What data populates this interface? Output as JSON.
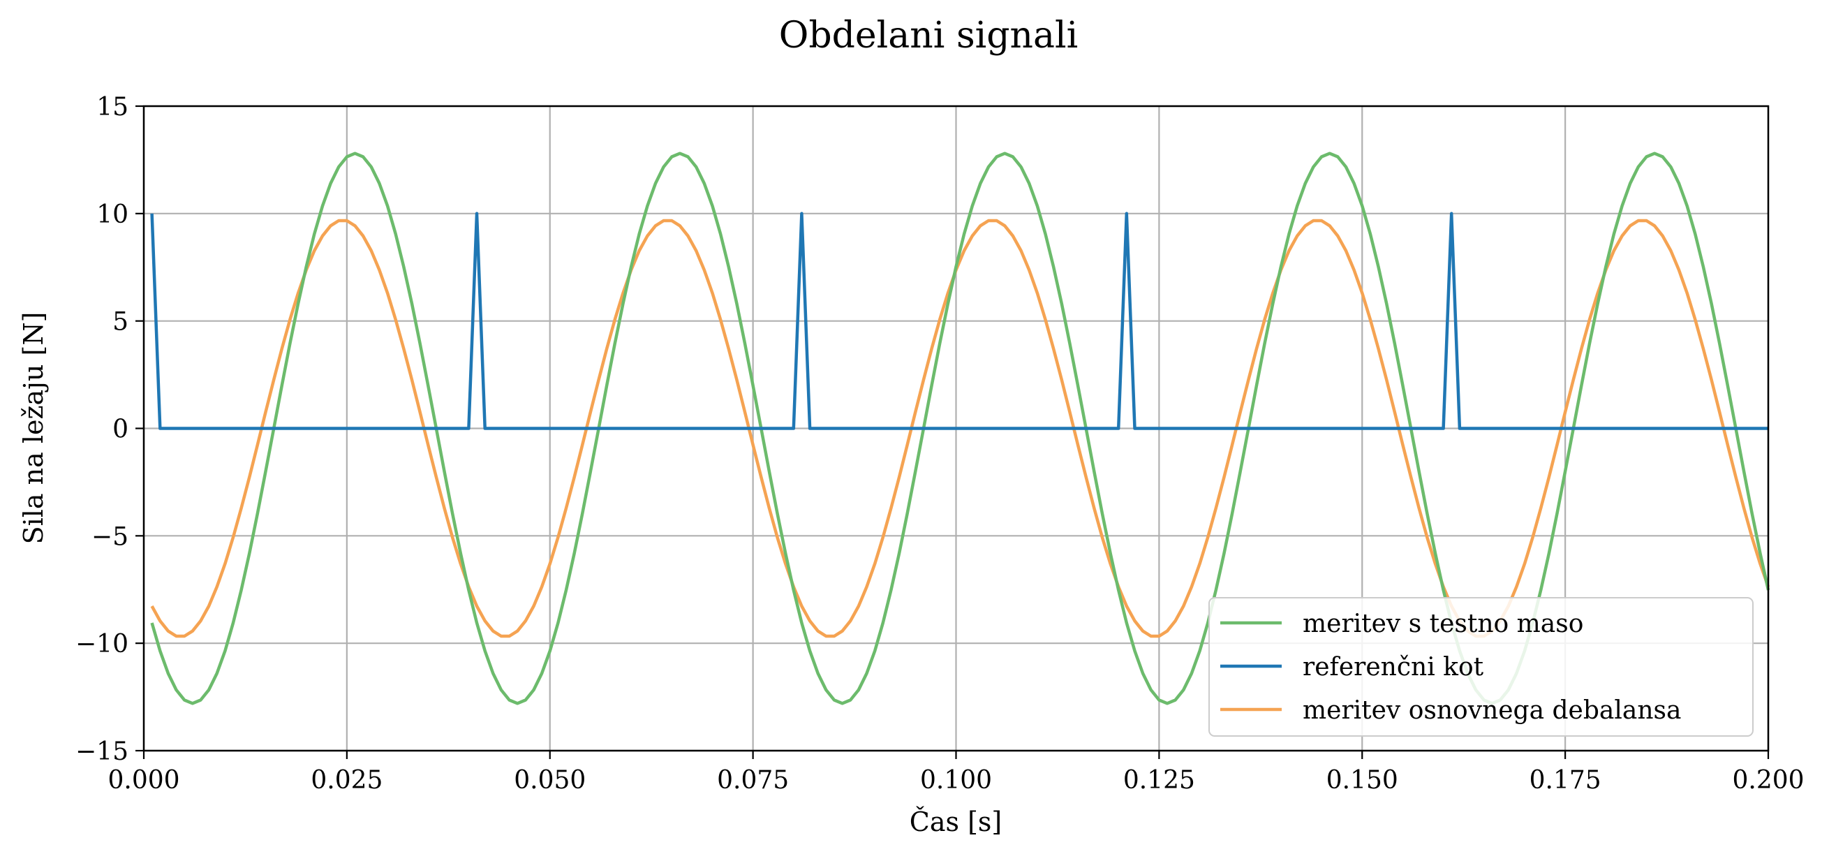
{
  "chart_data": {
    "type": "line",
    "title": "Obdelani signali",
    "xlabel": "Čas [s]",
    "ylabel": "Sila na ležaju [N]",
    "xlim": [
      0.0,
      0.2
    ],
    "ylim": [
      -15,
      15
    ],
    "x_ticks": [
      0.0,
      0.025,
      0.05,
      0.075,
      0.1,
      0.125,
      0.15,
      0.175,
      0.2
    ],
    "x_tick_labels": [
      "0.000",
      "0.025",
      "0.050",
      "0.075",
      "0.100",
      "0.125",
      "0.150",
      "0.175",
      "0.200"
    ],
    "y_ticks": [
      -15,
      -10,
      -5,
      0,
      5,
      10,
      15
    ],
    "y_tick_labels": [
      "−15",
      "−10",
      "−5",
      "0",
      "5",
      "10",
      "15"
    ],
    "grid": true,
    "legend_position": "lower-right",
    "series": [
      {
        "name": "meritev s testno maso",
        "color": "#6cbb6c",
        "kind": "sine",
        "amplitude": 12.8,
        "period": 0.04,
        "peak_x": 0.026,
        "x_start": 0.001,
        "x_end": 0.2
      },
      {
        "name": "referenčni kot",
        "color": "#1f77b4",
        "kind": "pulse",
        "baseline": 0,
        "pulse_value": 10,
        "pulse_x": [
          0.001,
          0.041,
          0.081,
          0.121,
          0.161
        ],
        "pulse_width": 0.001,
        "x_start": 0.001,
        "x_end": 0.2
      },
      {
        "name": "meritev osnovnega debalansa",
        "color": "#f5a352",
        "kind": "sine",
        "amplitude": 9.7,
        "period": 0.04,
        "peak_x": 0.0245,
        "x_start": 0.001,
        "x_end": 0.2
      }
    ],
    "legend_order": [
      0,
      1,
      2
    ]
  }
}
